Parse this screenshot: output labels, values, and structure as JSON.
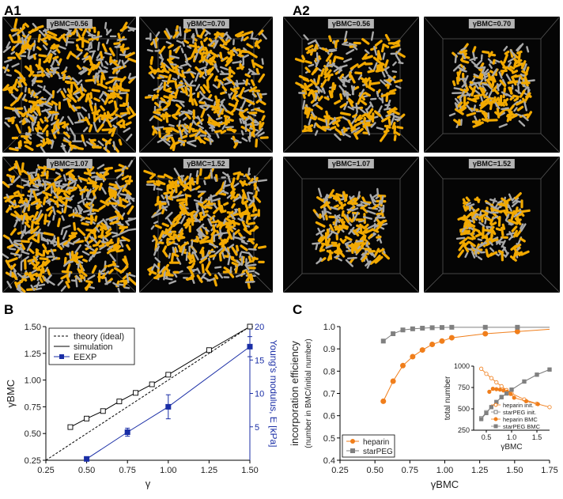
{
  "panels": {
    "a1": {
      "letter": "A1",
      "boxes": [
        {
          "label": "γBMC=0.56",
          "density": 1.0
        },
        {
          "label": "γBMC=0.70",
          "density": 0.92
        },
        {
          "label": "γBMC=1.07",
          "density": 1.1
        },
        {
          "label": "γBMC=1.52",
          "density": 0.88
        }
      ]
    },
    "a2": {
      "letter": "A2",
      "boxes": [
        {
          "label": "γBMC=0.56",
          "density": 0.62
        },
        {
          "label": "γBMC=0.70",
          "density": 0.45
        },
        {
          "label": "γBMC=1.07",
          "density": 0.38
        },
        {
          "label": "γBMC=1.52",
          "density": 0.32
        }
      ]
    },
    "b": {
      "letter": "B"
    },
    "c": {
      "letter": "C"
    }
  },
  "colors": {
    "heparin": "#f2a900",
    "starpeg": "#a9a9a9",
    "box": "#050505",
    "exp": "#1a2ea6",
    "orange": "#f07e1b",
    "gray": "#808080"
  },
  "chart_data": [
    {
      "type": "line",
      "xlabel": "γ",
      "ylabel": "γBMC",
      "y2label": "Young's modulus, E [kPa]",
      "xlim": [
        0.25,
        1.5
      ],
      "ylim": [
        0.25,
        1.5
      ],
      "y2lim": [
        0,
        20
      ],
      "xticks": [
        "0.25",
        "0.50",
        "0.75",
        "1.00",
        "1.25",
        "1.50"
      ],
      "yticks": [
        "0.25",
        "0.50",
        "0.75",
        "1.00",
        "1.25",
        "1.50"
      ],
      "y2ticks": [
        "5",
        "10",
        "15",
        "20"
      ],
      "legend": [
        "theory (ideal)",
        "simulation",
        "EEXP"
      ],
      "legend_position": "top-left",
      "series": [
        {
          "name": "theory (ideal)",
          "style": "dashed",
          "x": [
            0.25,
            1.5
          ],
          "y": [
            0.25,
            1.5
          ]
        },
        {
          "name": "simulation",
          "style": "solid",
          "x": [
            0.4,
            0.5,
            0.6,
            0.7,
            0.8,
            0.9,
            1.0,
            1.25,
            1.5
          ],
          "y": [
            0.56,
            0.64,
            0.71,
            0.8,
            0.88,
            0.96,
            1.05,
            1.28,
            1.5
          ]
        },
        {
          "name": "EEXP",
          "axis": "right",
          "x": [
            0.5,
            0.75,
            1.0,
            1.5
          ],
          "y": [
            0.2,
            4.2,
            8.0,
            17.0
          ],
          "err": [
            0.3,
            0.6,
            1.8,
            1.5
          ]
        }
      ]
    },
    {
      "type": "line",
      "xlabel": "γBMC",
      "ylabel": "incorporation efficiency",
      "ylabel2": "(number in BMC/initial number)",
      "xlim": [
        0.25,
        1.75
      ],
      "ylim": [
        0.4,
        1.0
      ],
      "xticks": [
        "0.25",
        "0.50",
        "0.75",
        "1.00",
        "1.25",
        "1.50",
        "1.75"
      ],
      "yticks": [
        "0.4",
        "0.5",
        "0.6",
        "0.7",
        "0.8",
        "0.9",
        "1.0"
      ],
      "legend": [
        "heparin",
        "starPEG"
      ],
      "legend_position": "bottom-left",
      "series": [
        {
          "name": "heparin",
          "x": [
            0.56,
            0.63,
            0.7,
            0.77,
            0.84,
            0.91,
            0.98,
            1.05,
            1.29,
            1.52
          ],
          "y": [
            0.665,
            0.755,
            0.825,
            0.865,
            0.895,
            0.92,
            0.935,
            0.95,
            0.968,
            0.978
          ]
        },
        {
          "name": "starPEG",
          "x": [
            0.56,
            0.63,
            0.7,
            0.77,
            0.84,
            0.91,
            0.98,
            1.05,
            1.29,
            1.52
          ],
          "y": [
            0.935,
            0.968,
            0.985,
            0.99,
            0.993,
            0.995,
            0.996,
            0.997,
            0.997,
            0.997
          ]
        }
      ],
      "inset": {
        "ylabel": "total number",
        "xlabel": "γBMC",
        "xlim": [
          0.25,
          1.75
        ],
        "ylim": [
          250,
          1000
        ],
        "xticks": [
          "0.5",
          "1.0",
          "1.5"
        ],
        "yticks": [
          "250",
          "500",
          "750",
          "1000"
        ],
        "legend": [
          "heparin init.",
          "starPEG init.",
          "heparin BMC",
          "starPEG BMC"
        ],
        "series": [
          {
            "name": "heparin init.",
            "x": [
              0.4,
              0.5,
              0.6,
              0.7,
              0.8,
              0.9,
              1.0,
              1.25,
              1.5,
              1.75
            ],
            "y": [
              970,
              910,
              860,
              810,
              765,
              720,
              680,
              610,
              560,
              520
            ]
          },
          {
            "name": "starPEG init.",
            "x": [
              0.4,
              0.5,
              0.6,
              0.7,
              0.8,
              0.9,
              1.0,
              1.25,
              1.5,
              1.75
            ],
            "y": [
              390,
              460,
              520,
              580,
              635,
              680,
              725,
              820,
              900,
              960
            ]
          },
          {
            "name": "heparin BMC",
            "x": [
              0.56,
              0.63,
              0.7,
              0.77,
              0.84,
              0.91,
              0.98,
              1.05,
              1.29,
              1.52
            ],
            "y": [
              700,
              735,
              730,
              725,
              715,
              700,
              675,
              630,
              590,
              555
            ]
          },
          {
            "name": "starPEG BMC",
            "x": [
              0.4,
              0.5,
              0.6,
              0.7,
              0.8,
              0.9,
              1.0,
              1.25,
              1.5,
              1.75
            ],
            "y": [
              380,
              450,
              520,
              580,
              640,
              680,
              725,
              820,
              900,
              960
            ]
          }
        ]
      }
    }
  ]
}
